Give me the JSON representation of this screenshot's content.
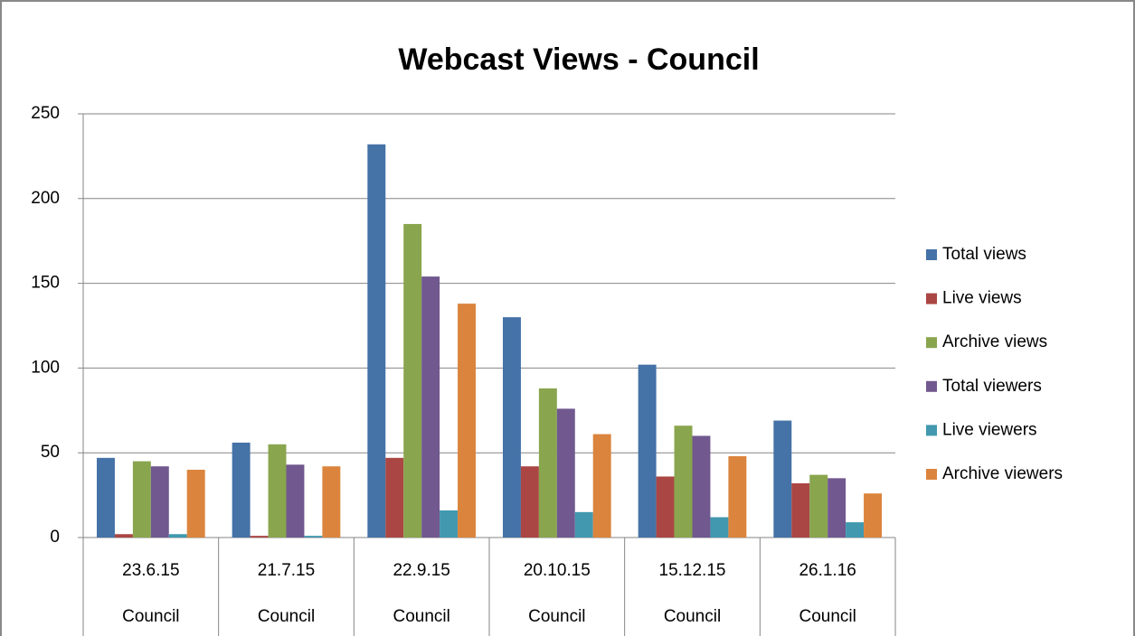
{
  "chart_data": {
    "type": "bar",
    "title": "Webcast Views - Council",
    "categories": [
      "23.6.15",
      "21.7.15",
      "22.9.15",
      "20.10.15",
      "15.12.15",
      "26.1.16"
    ],
    "category_groups": [
      "Council",
      "Council",
      "Council",
      "Council",
      "Council",
      "Council"
    ],
    "series": [
      {
        "name": "Total views",
        "color": "#4572a7",
        "values": [
          47,
          56,
          232,
          130,
          102,
          69
        ]
      },
      {
        "name": "Live views",
        "color": "#aa4643",
        "values": [
          2,
          1,
          47,
          42,
          36,
          32
        ]
      },
      {
        "name": "Archive views",
        "color": "#89a54e",
        "values": [
          45,
          55,
          185,
          88,
          66,
          37
        ]
      },
      {
        "name": "Total viewers",
        "color": "#71588f",
        "values": [
          42,
          43,
          154,
          76,
          60,
          35
        ]
      },
      {
        "name": "Live viewers",
        "color": "#4198af",
        "values": [
          2,
          1,
          16,
          15,
          12,
          9
        ]
      },
      {
        "name": "Archive viewers",
        "color": "#db843d",
        "values": [
          40,
          42,
          138,
          61,
          48,
          26
        ]
      }
    ],
    "ylim": [
      0,
      250
    ],
    "yticks": [
      0,
      50,
      100,
      150,
      200,
      250
    ],
    "grid": true,
    "legend": "right"
  }
}
